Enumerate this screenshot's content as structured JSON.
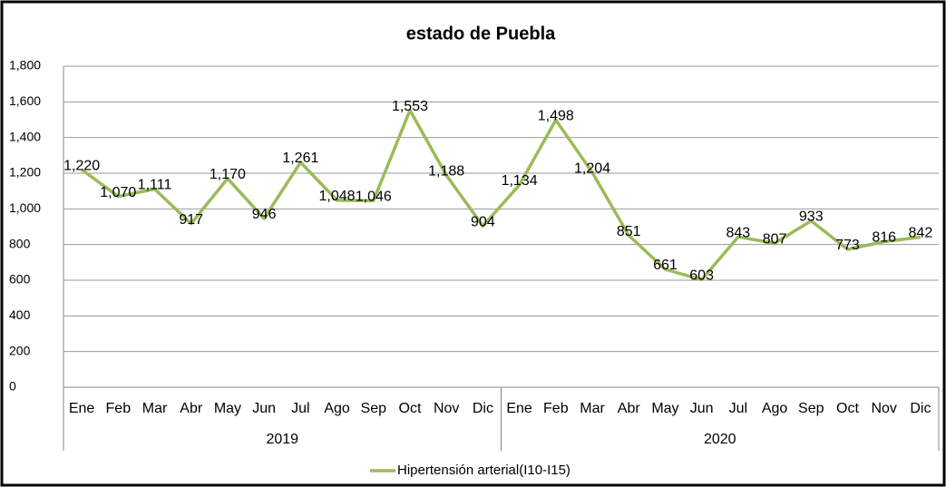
{
  "chart_data": {
    "type": "line",
    "title": "estado de Puebla",
    "groups": [
      {
        "name": "2019",
        "categories": [
          "Ene",
          "Feb",
          "Mar",
          "Abr",
          "May",
          "Jun",
          "Jul",
          "Ago",
          "Sep",
          "Oct",
          "Nov",
          "Dic"
        ]
      },
      {
        "name": "2020",
        "categories": [
          "Ene",
          "Feb",
          "Mar",
          "Abr",
          "May",
          "Jun",
          "Jul",
          "Ago",
          "Sep",
          "Oct",
          "Nov",
          "Dic"
        ]
      }
    ],
    "series": [
      {
        "name": "Hipertensión arterial(I10-I15)",
        "color": "#9bbb59",
        "values": [
          1220,
          1070,
          1111,
          917,
          1170,
          946,
          1261,
          1048,
          1046,
          1553,
          1188,
          904,
          1134,
          1498,
          1204,
          851,
          661,
          603,
          843,
          807,
          933,
          773,
          816,
          842
        ],
        "value_labels": [
          "1,220",
          "1,070",
          "1,111",
          "917",
          "1,170",
          "946",
          "1,261",
          "1,048",
          "1,046",
          "1,553",
          "1,188",
          "904",
          "1,134",
          "1,498",
          "1,204",
          "851",
          "661",
          "603",
          "843",
          "807",
          "933",
          "773",
          "816",
          "842"
        ]
      }
    ],
    "ylim": [
      0,
      1800
    ],
    "yticks": [
      0,
      200,
      400,
      600,
      800,
      {
        "value": 1000,
        "label": "1,000"
      },
      {
        "value": 1200,
        "label": "1,200"
      },
      {
        "value": 1400,
        "label": "1,400"
      },
      {
        "value": 1600,
        "label": "1,600"
      },
      {
        "value": 1800,
        "label": "1,800"
      }
    ],
    "grid": true,
    "legend": "bottom"
  }
}
